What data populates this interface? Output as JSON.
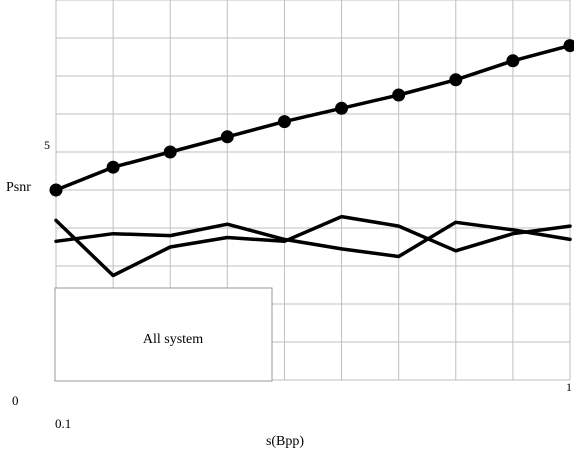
{
  "chart_data": {
    "type": "line",
    "title": "",
    "xlabel": "s(Bpp)",
    "ylabel": "Psnr",
    "grid": true,
    "x": [
      0.1,
      0.2,
      0.3,
      0.4,
      0.5,
      0.6,
      0.7,
      0.8,
      0.9,
      1.0
    ],
    "xlim": [
      0.1,
      1.0
    ],
    "ylim": [
      0,
      10
    ],
    "tick_labels": {
      "origin": "0",
      "x_start": "0.1",
      "x_end": "1",
      "y_mark": "5"
    },
    "legend": {
      "placement": "bottom-left",
      "text": "All system"
    },
    "series": [
      {
        "values": [
          5.0,
          5.6,
          6.0,
          6.4,
          6.8,
          7.15,
          7.5,
          7.9,
          8.4,
          8.8
        ],
        "markers": true
      },
      {
        "values": [
          4.2,
          2.75,
          3.5,
          3.75,
          3.65,
          4.3,
          4.05,
          3.4,
          3.85,
          4.05
        ],
        "markers": false
      },
      {
        "values": [
          3.65,
          3.85,
          3.8,
          4.1,
          3.7,
          3.45,
          3.25,
          4.15,
          3.95,
          3.7
        ],
        "markers": false
      }
    ]
  }
}
